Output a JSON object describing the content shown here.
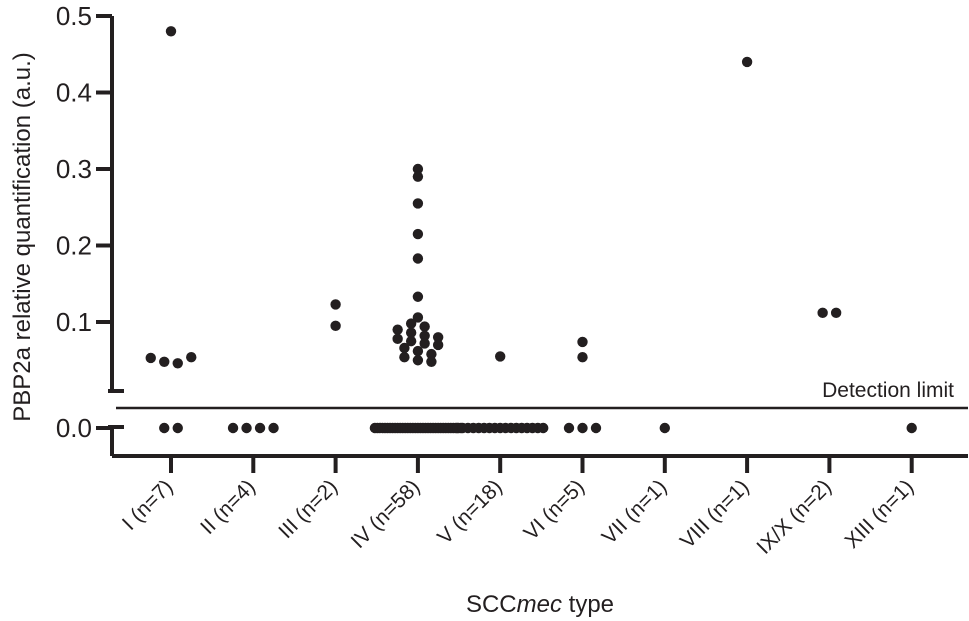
{
  "chart_data": {
    "type": "scatter",
    "ylabel": "PBP2a relative quantification (a.u.)",
    "xlabel_prefix": "SCC",
    "xlabel_italic": "mec",
    "xlabel_suffix": " type",
    "ylim": [
      0,
      0.5
    ],
    "y_ticks": [
      {
        "value": 0.0,
        "label": "0.0"
      },
      {
        "value": 0.1,
        "label": "0.1"
      },
      {
        "value": 0.2,
        "label": "0.2"
      },
      {
        "value": 0.3,
        "label": "0.3"
      },
      {
        "value": 0.4,
        "label": "0.4"
      },
      {
        "value": 0.5,
        "label": "0.5"
      }
    ],
    "axis_break": true,
    "annotation": "Detection limit",
    "categories": [
      "I (n=7)",
      "II (n=4)",
      "III (n=2)",
      "IV (n=58)",
      "V (n=18)",
      "VI (n=5)",
      "VII (n=1)",
      "VIII (n=1)",
      "IX/X (n=2)",
      "XIII (n=1)"
    ],
    "values": [
      [
        0.48,
        0.053,
        0.048,
        0.046,
        0.054,
        0.0,
        0.0
      ],
      [
        0.0,
        0.0,
        0.0,
        0.0
      ],
      [
        0.123,
        0.095
      ],
      [
        0.3,
        0.29,
        0.255,
        0.215,
        0.183,
        0.133,
        0.106,
        0.098,
        0.094,
        0.09,
        0.086,
        0.082,
        0.08,
        0.078,
        0.075,
        0.072,
        0.07,
        0.066,
        0.062,
        0.058,
        0.054,
        0.05,
        0.048,
        0.0,
        0.0,
        0.0,
        0.0,
        0.0,
        0.0,
        0.0,
        0.0,
        0.0,
        0.0,
        0.0,
        0.0,
        0.0,
        0.0,
        0.0,
        0.0,
        0.0,
        0.0,
        0.0,
        0.0,
        0.0,
        0.0,
        0.0,
        0.0,
        0.0,
        0.0,
        0.0,
        0.0,
        0.0,
        0.0,
        0.0,
        0.0,
        0.0,
        0.0,
        0.0
      ],
      [
        0.055,
        0.0,
        0.0,
        0.0,
        0.0,
        0.0,
        0.0,
        0.0,
        0.0,
        0.0,
        0.0,
        0.0,
        0.0,
        0.0,
        0.0,
        0.0,
        0.0,
        0.0
      ],
      [
        0.074,
        0.054,
        0.0,
        0.0,
        0.0
      ],
      [
        0.0
      ],
      [
        0.44
      ],
      [
        0.112,
        0.112
      ],
      [
        0.0
      ]
    ]
  }
}
